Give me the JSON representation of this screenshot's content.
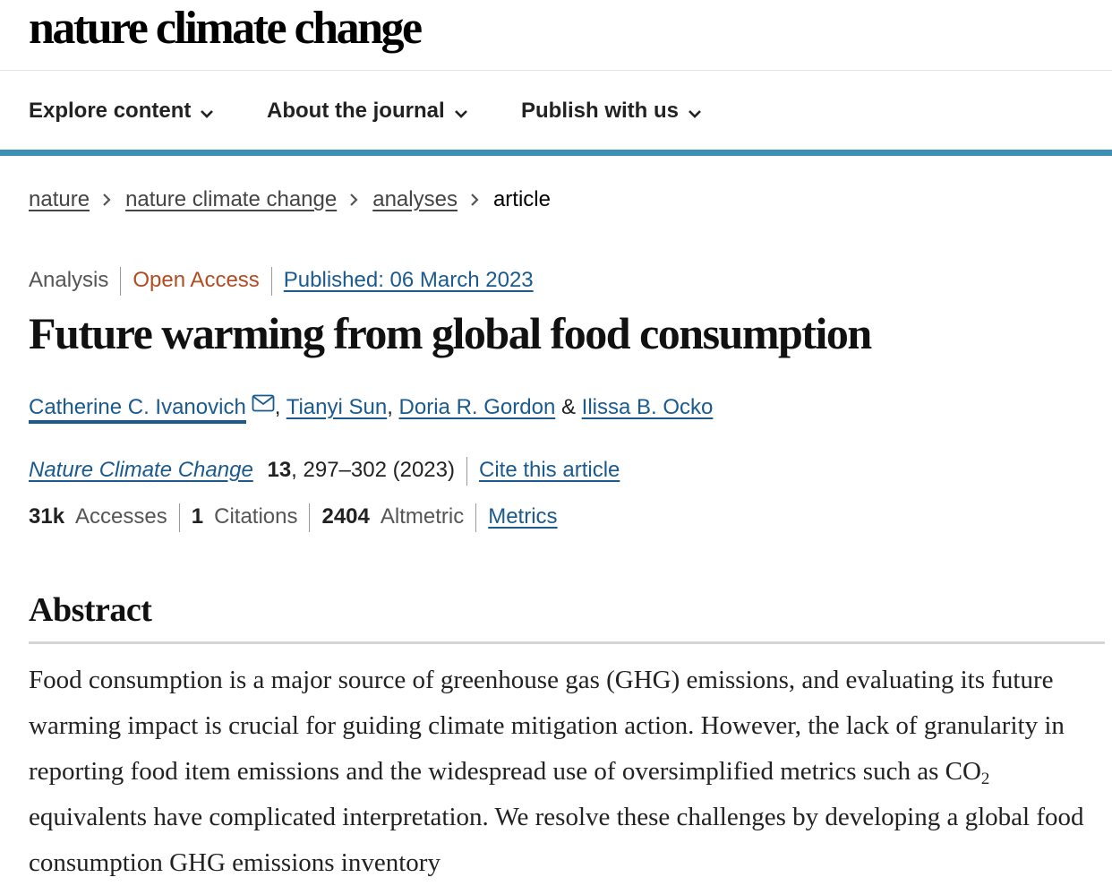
{
  "site": {
    "logo": "nature climate change"
  },
  "nav": {
    "items": [
      {
        "label": "Explore content"
      },
      {
        "label": "About the journal"
      },
      {
        "label": "Publish with us"
      }
    ]
  },
  "breadcrumb": {
    "items": [
      "nature",
      "nature climate change",
      "analyses"
    ],
    "current": "article"
  },
  "article": {
    "type": "Analysis",
    "access": "Open Access",
    "published": "Published: 06 March 2023",
    "title": "Future warming from global food consumption",
    "authors": [
      "Catherine C. Ivanovich",
      "Tianyi Sun",
      "Doria R. Gordon",
      "Ilissa B. Ocko"
    ],
    "author_separators": [
      ",",
      ",",
      "&"
    ],
    "journal": "Nature Climate Change",
    "volume": "13",
    "pages_year": ", 297–302 (2023)",
    "cite_label": "Cite this article"
  },
  "metrics": {
    "accesses_value": "31k",
    "accesses_label": "Accesses",
    "citations_value": "1",
    "citations_label": "Citations",
    "altmetric_value": "2404",
    "altmetric_label": "Altmetric",
    "metrics_link": "Metrics"
  },
  "abstract": {
    "heading": "Abstract",
    "text_before_sub": "Food consumption is a major source of greenhouse gas (GHG) emissions, and evaluating its future warming impact is crucial for guiding climate mitigation action. However, the lack of granularity in reporting food item emissions and the widespread use of oversimplified metrics such as CO",
    "sub": "2",
    "text_after_sub": " equivalents have complicated interpretation. We resolve these challenges by developing a global food consumption GHG emissions inventory"
  },
  "icons": {
    "nav_chevron": "chevron-down-icon",
    "breadcrumb_separator": "chevron-right-icon",
    "corresponding_author": "mail-icon"
  },
  "colors": {
    "accent_bar": "#3d8fb5",
    "link": "#1a5a8f",
    "open_access": "#b24c23"
  }
}
